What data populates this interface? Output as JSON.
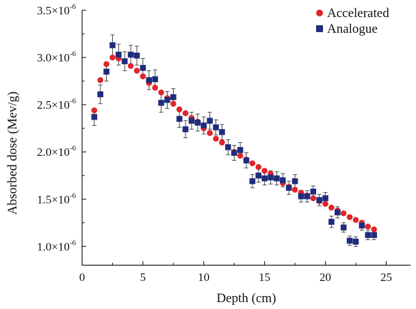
{
  "chart_data": {
    "type": "scatter",
    "xlabel": "Depth (cm)",
    "ylabel": "Absorbed dose (Mev/g)",
    "xlim": [
      0,
      27
    ],
    "ylim": [
      8e-07,
      3.5e-06
    ],
    "xticks": [
      0,
      5,
      10,
      15,
      20,
      25
    ],
    "yticks": [
      1e-06,
      1.5e-06,
      2e-06,
      2.5e-06,
      3e-06,
      3.5e-06
    ],
    "ytick_mantissas": [
      "1.0",
      "1.5",
      "2.0",
      "2.5",
      "3.0",
      "3.5"
    ],
    "ytick_times": "×10",
    "ytick_exponent": "-6",
    "legend_position": "top-right",
    "grid": false,
    "series": [
      {
        "name": "Accelerated",
        "marker": "circle",
        "color": "#e0262a",
        "x": [
          1.0,
          1.5,
          2.0,
          2.5,
          3.0,
          3.5,
          4.0,
          4.5,
          5.0,
          5.5,
          6.0,
          6.5,
          7.0,
          7.5,
          8.0,
          8.5,
          9.0,
          9.5,
          10.0,
          10.5,
          11.0,
          11.5,
          12.0,
          12.5,
          13.0,
          13.5,
          14.0,
          14.5,
          15.0,
          15.5,
          16.0,
          16.5,
          17.0,
          17.5,
          18.0,
          18.5,
          19.0,
          19.5,
          20.0,
          20.5,
          21.0,
          21.5,
          22.0,
          22.5,
          23.0,
          23.5,
          24.0
        ],
        "y": [
          2.44e-06,
          2.76e-06,
          2.93e-06,
          3e-06,
          2.99e-06,
          2.96e-06,
          2.91e-06,
          2.86e-06,
          2.8e-06,
          2.73e-06,
          2.68e-06,
          2.63e-06,
          2.57e-06,
          2.51e-06,
          2.45e-06,
          2.41e-06,
          2.36e-06,
          2.32e-06,
          2.25e-06,
          2.2e-06,
          2.14e-06,
          2.1e-06,
          2.05e-06,
          2e-06,
          1.96e-06,
          1.92e-06,
          1.88e-06,
          1.84e-06,
          1.8e-06,
          1.77e-06,
          1.72e-06,
          1.67e-06,
          1.63e-06,
          1.6e-06,
          1.57e-06,
          1.54e-06,
          1.51e-06,
          1.48e-06,
          1.45e-06,
          1.41e-06,
          1.38e-06,
          1.35e-06,
          1.31e-06,
          1.28e-06,
          1.25e-06,
          1.21e-06,
          1.18e-06
        ]
      },
      {
        "name": "Analogue",
        "marker": "square",
        "color": "#1f2c7c",
        "x": [
          1.0,
          1.5,
          2.0,
          2.5,
          3.0,
          3.5,
          4.0,
          4.5,
          5.0,
          5.5,
          6.0,
          6.5,
          7.0,
          7.5,
          8.0,
          8.5,
          9.0,
          9.5,
          10.0,
          10.5,
          11.0,
          11.5,
          12.0,
          12.5,
          13.0,
          13.5,
          14.0,
          14.5,
          15.0,
          15.5,
          16.0,
          16.5,
          17.0,
          17.5,
          18.0,
          18.5,
          19.0,
          19.5,
          20.0,
          20.5,
          21.0,
          21.5,
          22.0,
          22.5,
          23.0,
          23.5,
          24.0
        ],
        "y": [
          2.37e-06,
          2.61e-06,
          2.85e-06,
          3.13e-06,
          3.03e-06,
          2.96e-06,
          3.03e-06,
          3.02e-06,
          2.89e-06,
          2.76e-06,
          2.77e-06,
          2.52e-06,
          2.55e-06,
          2.58e-06,
          2.35e-06,
          2.24e-06,
          2.33e-06,
          2.31e-06,
          2.28e-06,
          2.33e-06,
          2.26e-06,
          2.21e-06,
          2.05e-06,
          1.99e-06,
          2.02e-06,
          1.91e-06,
          1.69e-06,
          1.75e-06,
          1.72e-06,
          1.73e-06,
          1.72e-06,
          1.7e-06,
          1.62e-06,
          1.69e-06,
          1.53e-06,
          1.53e-06,
          1.58e-06,
          1.49e-06,
          1.51e-06,
          1.26e-06,
          1.36e-06,
          1.2e-06,
          1.06e-06,
          1.05e-06,
          1.22e-06,
          1.12e-06,
          1.12e-06
        ],
        "error": [
          9e-08,
          1e-07,
          1e-07,
          1.1e-07,
          1.1e-07,
          1e-07,
          1e-07,
          1e-07,
          1e-07,
          1e-07,
          1e-07,
          1e-07,
          9e-08,
          9e-08,
          9e-08,
          9e-08,
          9e-08,
          9e-08,
          9e-08,
          9e-08,
          8e-08,
          8e-08,
          8e-08,
          8e-08,
          8e-08,
          8e-08,
          7e-08,
          7e-08,
          7e-08,
          7e-08,
          7e-08,
          7e-08,
          7e-08,
          7e-08,
          6e-08,
          6e-08,
          6e-08,
          6e-08,
          6e-08,
          6e-08,
          6e-08,
          5e-08,
          5e-08,
          5e-08,
          5e-08,
          5e-08,
          5e-08
        ]
      }
    ]
  }
}
